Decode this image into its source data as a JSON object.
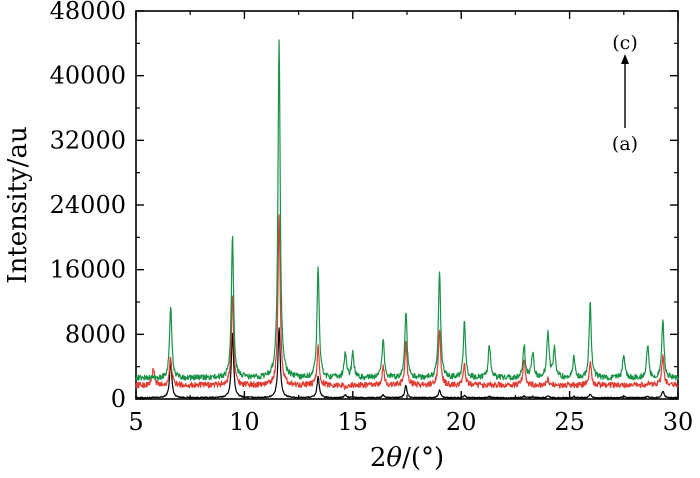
{
  "chart_data": {
    "type": "line",
    "title": "",
    "xlabel_prefix": "2",
    "xlabel_theta": "θ",
    "xlabel_suffix": "/(°)",
    "ylabel": "Intensity/au",
    "xlim": [
      5,
      30
    ],
    "ylim": [
      0,
      48000
    ],
    "xticks": [
      "5",
      "10",
      "15",
      "20",
      "25",
      "30"
    ],
    "yticks": [
      "0",
      "8000",
      "16000",
      "24000",
      "32000",
      "40000",
      "48000"
    ],
    "grid": false,
    "legend": "none",
    "annotations": {
      "top_label": "(c)",
      "bottom_label": "(a)"
    },
    "series": [
      {
        "color": "#000000",
        "baseline": 150,
        "peaks": [
          [
            6.6,
            4800
          ],
          [
            9.45,
            8300
          ],
          [
            11.6,
            8800
          ],
          [
            13.4,
            2800
          ],
          [
            14.65,
            500
          ],
          [
            15.0,
            300
          ],
          [
            16.4,
            500
          ],
          [
            17.45,
            1700
          ],
          [
            19.0,
            1100
          ],
          [
            20.15,
            400
          ],
          [
            21.3,
            300
          ],
          [
            22.9,
            350
          ],
          [
            23.3,
            300
          ],
          [
            24.0,
            400
          ],
          [
            25.2,
            300
          ],
          [
            25.95,
            600
          ],
          [
            27.5,
            300
          ],
          [
            28.6,
            350
          ],
          [
            29.3,
            1000
          ]
        ]
      },
      {
        "color": "#e03c31",
        "baseline": 1700,
        "peaks": [
          [
            5.8,
            3800
          ],
          [
            6.6,
            5200
          ],
          [
            9.45,
            13100
          ],
          [
            11.6,
            22900
          ],
          [
            13.4,
            6400
          ],
          [
            14.65,
            1400
          ],
          [
            16.4,
            3900
          ],
          [
            17.45,
            7000
          ],
          [
            19.0,
            8600
          ],
          [
            20.15,
            4200
          ],
          [
            21.3,
            2000
          ],
          [
            22.9,
            4800
          ],
          [
            24.0,
            2400
          ],
          [
            25.95,
            4600
          ],
          [
            27.5,
            1600
          ],
          [
            28.6,
            1900
          ],
          [
            29.3,
            5300
          ]
        ]
      },
      {
        "color": "#199247",
        "baseline": 2600,
        "peaks": [
          [
            6.6,
            11600
          ],
          [
            9.45,
            20300
          ],
          [
            11.6,
            44600
          ],
          [
            13.4,
            16400
          ],
          [
            14.65,
            5800
          ],
          [
            15.0,
            5700
          ],
          [
            16.4,
            7600
          ],
          [
            17.45,
            11000
          ],
          [
            19.0,
            16000
          ],
          [
            20.15,
            9400
          ],
          [
            21.3,
            6700
          ],
          [
            22.9,
            6700
          ],
          [
            23.3,
            5800
          ],
          [
            24.0,
            8300
          ],
          [
            24.3,
            6300
          ],
          [
            25.2,
            5200
          ],
          [
            25.95,
            11800
          ],
          [
            27.5,
            5400
          ],
          [
            28.6,
            6600
          ],
          [
            29.3,
            9800
          ]
        ]
      }
    ]
  }
}
